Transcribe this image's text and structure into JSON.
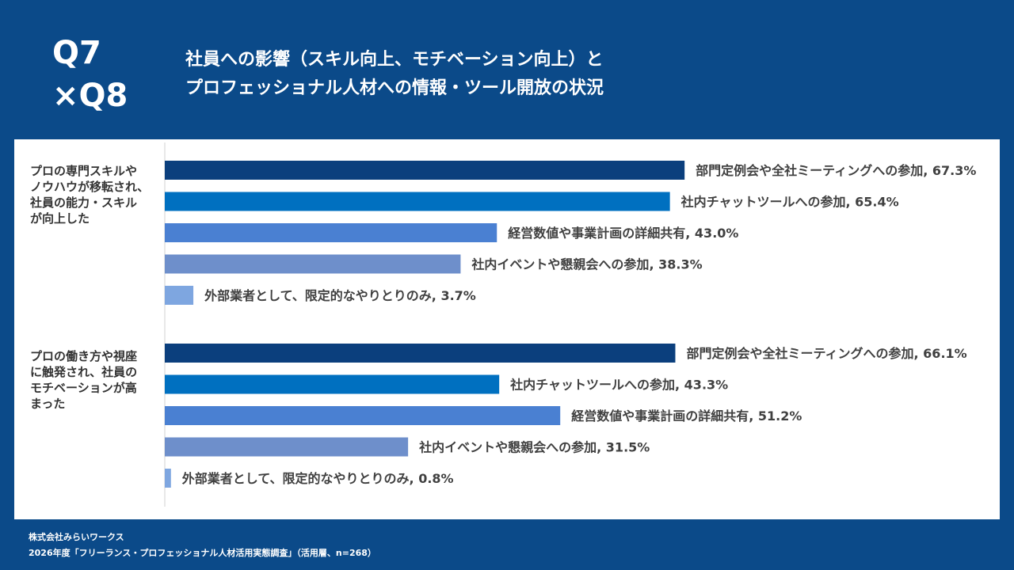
{
  "chart_data": {
    "type": "grouped-hbar",
    "badge": "Q7\n×Q8",
    "title": "社員への影響（スキル向上、モチベーション向上）と\nプロフェッショナル人材への情報・ツール開放の状況",
    "categories": [
      "プロの専門スキルや\nノウハウが移転され、\n社員の能力・スキル\nが向上した",
      "プロの働き方や視座\nに触発され、社員の\nモチベーションが高\nまった"
    ],
    "label_separator": ", ",
    "series": [
      {
        "name": "部門定例会や全社ミーティングへの参加",
        "color": "#0b3f7d",
        "values": [
          67.3,
          66.1
        ],
        "value_labels": [
          "67.3%",
          "66.1%"
        ]
      },
      {
        "name": "社内チャットツールへの参加",
        "color": "#0070c0",
        "values": [
          65.4,
          43.3
        ],
        "value_labels": [
          "65.4%",
          "43.3%"
        ]
      },
      {
        "name": "経営数値や事業計画の詳細共有",
        "color": "#4a80d2",
        "values": [
          43.0,
          51.2
        ],
        "value_labels": [
          "43.0%",
          "51.2%"
        ]
      },
      {
        "name": "社内イベントや懇親会への参加",
        "color": "#6e8fcb",
        "values": [
          38.3,
          31.5
        ],
        "value_labels": [
          "38.3%",
          "31.5%"
        ]
      },
      {
        "name": "外部業者として、限定的なやりとりのみ",
        "color": "#7ea6e0",
        "values": [
          3.7,
          0.8
        ],
        "value_labels": [
          "3.7%",
          "0.8%"
        ]
      }
    ],
    "footnotes": [
      "株式会社みらいワークス",
      "2026年度「フリーランス・プロフェッショナル人材活用実態調査」（活用層、n=268）"
    ]
  }
}
